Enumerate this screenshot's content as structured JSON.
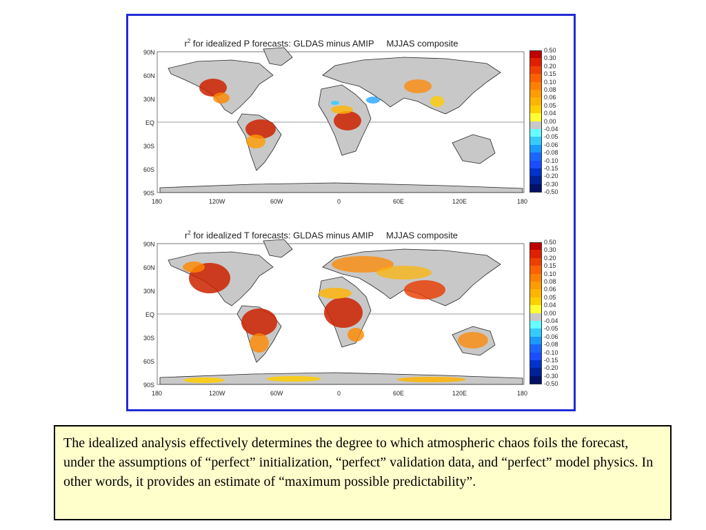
{
  "panels": [
    {
      "id": "precip",
      "title_prefix": "r",
      "title_sup": "2",
      "title_rest": " for idealized P forecasts: GLDAS minus AMIP     MJJAS composite",
      "map_layers": {
        "land": "#c8c8c8",
        "ocean": "#ffffff",
        "equator_line": "#666666"
      },
      "blobs": [
        {
          "region": "Central North America",
          "level": "0.30",
          "color": "#cc2200"
        },
        {
          "region": "Northern South America",
          "level": "0.30",
          "color": "#cc2200"
        },
        {
          "region": "Central Africa",
          "level": "0.30",
          "color": "#cc2200"
        },
        {
          "region": "Middle East",
          "level": "-0.05",
          "color": "#33aaff"
        }
      ]
    },
    {
      "id": "temp",
      "title_prefix": "r",
      "title_sup": "2",
      "title_rest": " for idealized T forecasts: GLDAS minus AMIP     MJJAS composite",
      "map_layers": {
        "land": "#c8c8c8",
        "ocean": "#ffffff",
        "equator_line": "#666666"
      },
      "blobs": [
        {
          "region": "North America",
          "level": "0.30",
          "color": "#cc2200"
        },
        {
          "region": "South America",
          "level": "0.30",
          "color": "#cc2200"
        },
        {
          "region": "Africa",
          "level": "0.30",
          "color": "#cc2200"
        },
        {
          "region": "South and East Asia",
          "level": "0.20",
          "color": "#e83a00"
        },
        {
          "region": "Europe and Siberia",
          "level": "0.10",
          "color": "#ff8800"
        },
        {
          "region": "Australia",
          "level": "0.10",
          "color": "#ff8800"
        },
        {
          "region": "Antarctica",
          "level": "0.05",
          "color": "#ffcc00"
        }
      ]
    }
  ],
  "lat_labels": [
    "90N",
    "60N",
    "30N",
    "EQ",
    "30S",
    "60S",
    "90S"
  ],
  "lon_labels": [
    "180",
    "120W",
    "60W",
    "0",
    "60E",
    "120E",
    "180"
  ],
  "colorbar": {
    "levels": [
      "0.50",
      "0.30",
      "0.20",
      "0.15",
      "0.10",
      "0.08",
      "0.06",
      "0.05",
      "0.04",
      "0.00",
      "-0.04",
      "-0.05",
      "-0.06",
      "-0.08",
      "-0.10",
      "-0.15",
      "-0.20",
      "-0.30",
      "-0.50"
    ],
    "colors": [
      "#c00000",
      "#e02000",
      "#f04000",
      "#ff6000",
      "#ff8000",
      "#ff9c00",
      "#ffb400",
      "#ffd000",
      "#ffff33",
      "#c8c8c8",
      "#66ffff",
      "#33ccff",
      "#1a99ff",
      "#1a66ff",
      "#1a4dff",
      "#0033cc",
      "#002299",
      "#001166"
    ]
  },
  "caption": "The idealized analysis effectively determines the degree to which atmospheric chaos foils the forecast, under the assumptions of “perfect” initialization, “perfect” validation data, and “perfect” model physics.  In other words, it provides an estimate of “maximum possible predictability”.",
  "colors": {
    "frame_border": "#1f2bd6",
    "caption_bg": "#ffffcc"
  }
}
